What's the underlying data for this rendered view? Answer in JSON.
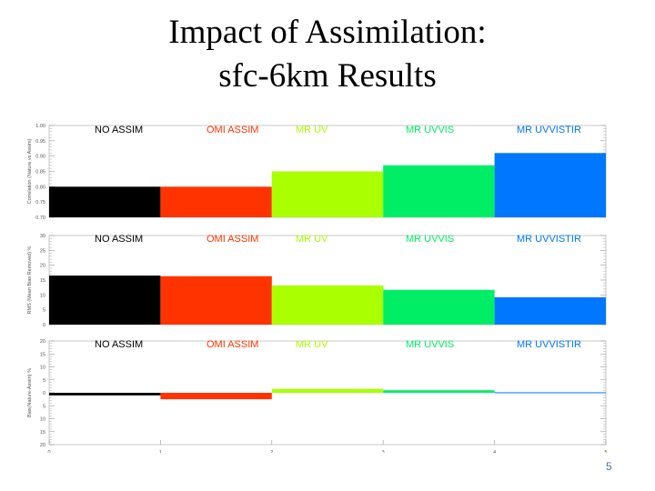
{
  "slide": {
    "title_line1": "Impact of Assimilation:",
    "title_line2": "sfc-6km Results",
    "page_number": "5"
  },
  "colors": {
    "NO ASSIM": "#000000",
    "OMI ASSIM": "#ff3300",
    "MR UV": "#aaff00",
    "MR UVVIS": "#00ee66",
    "MR UVVISTIR": "#0077ff"
  },
  "chart_data": [
    {
      "type": "bar",
      "categories": [
        "NO ASSIM",
        "OMI ASSIM",
        "MR UV",
        "MR UVVIS",
        "MR UVVISTIR"
      ],
      "values": [
        0.8,
        0.8,
        0.85,
        0.87,
        0.91
      ],
      "ylabel": "Correlation (Nature vs Assim)",
      "ylim": [
        0.7,
        1.0
      ],
      "yticks": [
        "0.70",
        "0.75",
        "0.80",
        "0.85",
        "0.90",
        "0.95",
        "1.00"
      ]
    },
    {
      "type": "bar",
      "categories": [
        "NO ASSIM",
        "OMI ASSIM",
        "MR UV",
        "MR UVVIS",
        "MR UVVISTIR"
      ],
      "values": [
        16.5,
        16.3,
        13.2,
        11.7,
        9.2
      ],
      "ylabel": "RMS (Mean Bias Removed) %",
      "ylim": [
        0,
        30
      ],
      "yticks": [
        "0",
        "5",
        "10",
        "15",
        "20",
        "25",
        "30"
      ]
    },
    {
      "type": "bar",
      "categories": [
        "NO ASSIM",
        "OMI ASSIM",
        "MR UV",
        "MR UVVIS",
        "MR UVVISTIR"
      ],
      "values": [
        -1.0,
        -2.5,
        1.5,
        1.0,
        0.2
      ],
      "ylabel": "Bias(Nature-Assim) %",
      "ylim": [
        -20,
        20
      ],
      "yticks": [
        "-20",
        "-15",
        "-10",
        "-5",
        "0",
        "5",
        "10",
        "15",
        "20"
      ],
      "ytick_display": [
        "20",
        "15",
        "10",
        "5",
        "0",
        "5",
        "10",
        "15",
        "20"
      ],
      "xlabel": "sfc-6km/ADL",
      "xticks": [
        "0",
        "1",
        "2",
        "3",
        "4",
        "5"
      ]
    }
  ]
}
